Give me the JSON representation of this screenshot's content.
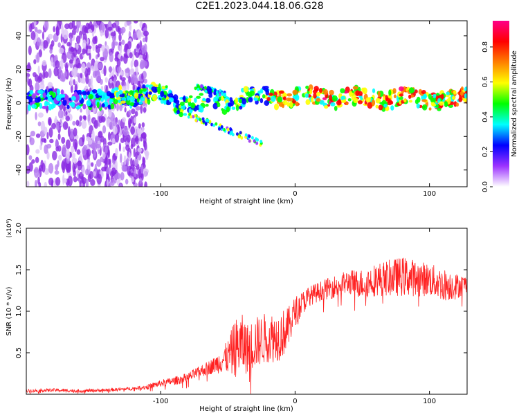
{
  "title": "C2E1.2023.044.18.06.G28",
  "chart_data": [
    {
      "type": "heatmap",
      "xlabel": "Height of straight line (km)",
      "ylabel": "Frequency (Hz)",
      "xlim": [
        -200,
        128
      ],
      "ylim": [
        -50,
        49
      ],
      "x_ticks": [
        -100,
        0,
        100
      ],
      "y_ticks": [
        -40,
        -20,
        0,
        20,
        40
      ],
      "grid": false,
      "colorbar": {
        "label": "Normalized spectral amplitude",
        "range": [
          0.0,
          0.95
        ],
        "ticks": [
          0.0,
          0.2,
          0.4,
          0.6,
          0.8
        ],
        "colormap": [
          "#ffffff",
          "#9c33ff",
          "#0000ff",
          "#00ffff",
          "#00ff00",
          "#ffff00",
          "#ff8000",
          "#ff0000",
          "#ff0088"
        ]
      },
      "features": [
        {
          "name": "main-carrier",
          "x": [
            -135,
            128
          ],
          "frequency": [
            5,
            2
          ],
          "amplitude": 0.85
        },
        {
          "name": "upper-branch",
          "x": [
            -75,
            -52
          ],
          "frequency": [
            10,
            5
          ],
          "amplitude": 0.4
        },
        {
          "name": "lower-branch",
          "x": [
            -80,
            -25
          ],
          "frequency": [
            -7,
            -24
          ],
          "amplitude": 0.5
        },
        {
          "name": "noise-region",
          "x": [
            -200,
            -110
          ],
          "frequency": [
            -50,
            49
          ],
          "amplitude": 0.2
        }
      ]
    },
    {
      "type": "line",
      "xlabel": "Height of straight line (km)",
      "ylabel": "SNR (10 * v/v)",
      "y_multiplier": "(x10⁴)",
      "xlim": [
        -200,
        128
      ],
      "ylim": [
        0,
        2.0
      ],
      "x_ticks": [
        -100,
        0,
        100
      ],
      "y_ticks": [
        0.5,
        1.0,
        1.5,
        2.0
      ],
      "grid": false,
      "series": [
        {
          "color": "#ff2020",
          "x": [
            -200,
            -180,
            -160,
            -140,
            -120,
            -110,
            -100,
            -90,
            -80,
            -70,
            -60,
            -50,
            -45,
            -40,
            -35,
            -30,
            -25,
            -20,
            -15,
            -10,
            -5,
            0,
            10,
            20,
            30,
            40,
            50,
            60,
            70,
            80,
            90,
            100,
            110,
            120,
            128
          ],
          "y": [
            0.04,
            0.05,
            0.04,
            0.05,
            0.07,
            0.09,
            0.13,
            0.16,
            0.2,
            0.28,
            0.35,
            0.45,
            0.55,
            0.6,
            0.55,
            0.62,
            0.65,
            0.7,
            0.68,
            0.72,
            0.8,
            1.0,
            1.18,
            1.25,
            1.3,
            1.35,
            1.33,
            1.38,
            1.4,
            1.42,
            1.4,
            1.38,
            1.32,
            1.3,
            1.33
          ],
          "spread": [
            0.02,
            0.02,
            0.02,
            0.02,
            0.02,
            0.03,
            0.04,
            0.05,
            0.06,
            0.07,
            0.1,
            0.2,
            0.35,
            0.38,
            0.3,
            0.32,
            0.3,
            0.32,
            0.3,
            0.3,
            0.25,
            0.18,
            0.12,
            0.12,
            0.14,
            0.15,
            0.18,
            0.2,
            0.22,
            0.24,
            0.22,
            0.2,
            0.2,
            0.16,
            0.1
          ]
        }
      ]
    }
  ]
}
